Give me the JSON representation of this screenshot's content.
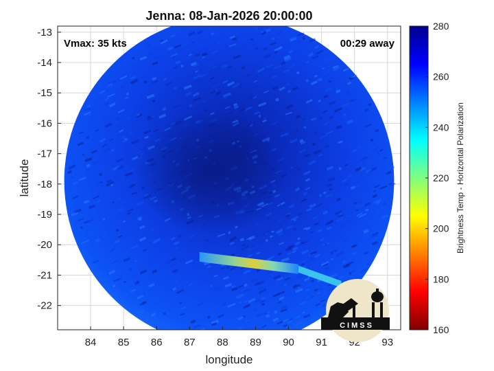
{
  "chart_data": {
    "type": "heatmap",
    "title": "Jenna: 08-Jan-2026 20:00:00",
    "xlabel": "longitude",
    "ylabel": "latitude",
    "xlim": [
      83.0,
      93.4
    ],
    "ylim": [
      -22.8,
      -12.8
    ],
    "x_ticks": [
      84,
      85,
      86,
      87,
      88,
      89,
      90,
      91,
      92,
      93
    ],
    "y_ticks": [
      -13,
      -14,
      -15,
      -16,
      -17,
      -18,
      -19,
      -20,
      -21,
      -22
    ],
    "grid": true,
    "annotations": {
      "vmax": "Vmax: 35 kts",
      "offset": "00:29 away"
    },
    "colorbar": {
      "label": "Brightness Temp - Horizontal Polarization",
      "range": [
        160,
        280
      ],
      "ticks": [
        160,
        180,
        200,
        220,
        240,
        260,
        280
      ],
      "colormap": [
        "#7f0000",
        "#ff0000",
        "#ff8000",
        "#ffff00",
        "#80ff80",
        "#00ffff",
        "#0080ff",
        "#0000ff",
        "#00008f"
      ]
    },
    "swath": {
      "center_lon": 88.2,
      "center_lat": -17.9,
      "radius_deg": 5.0
    },
    "features": [
      {
        "name": "cold_band",
        "lon_start": 87.3,
        "lon_end": 90.3,
        "lat_start": -20.4,
        "lat_end": -20.8,
        "min_temp": 200
      },
      {
        "name": "cold_band_tail",
        "lon_start": 90.3,
        "lon_end": 91.6,
        "lat_start": -20.8,
        "lat_end": -21.3,
        "min_temp": 235
      },
      {
        "name": "warm_core",
        "lon": 87.6,
        "lat": -17.6,
        "max_temp": 276
      }
    ],
    "logo_text": "CIMSS"
  }
}
